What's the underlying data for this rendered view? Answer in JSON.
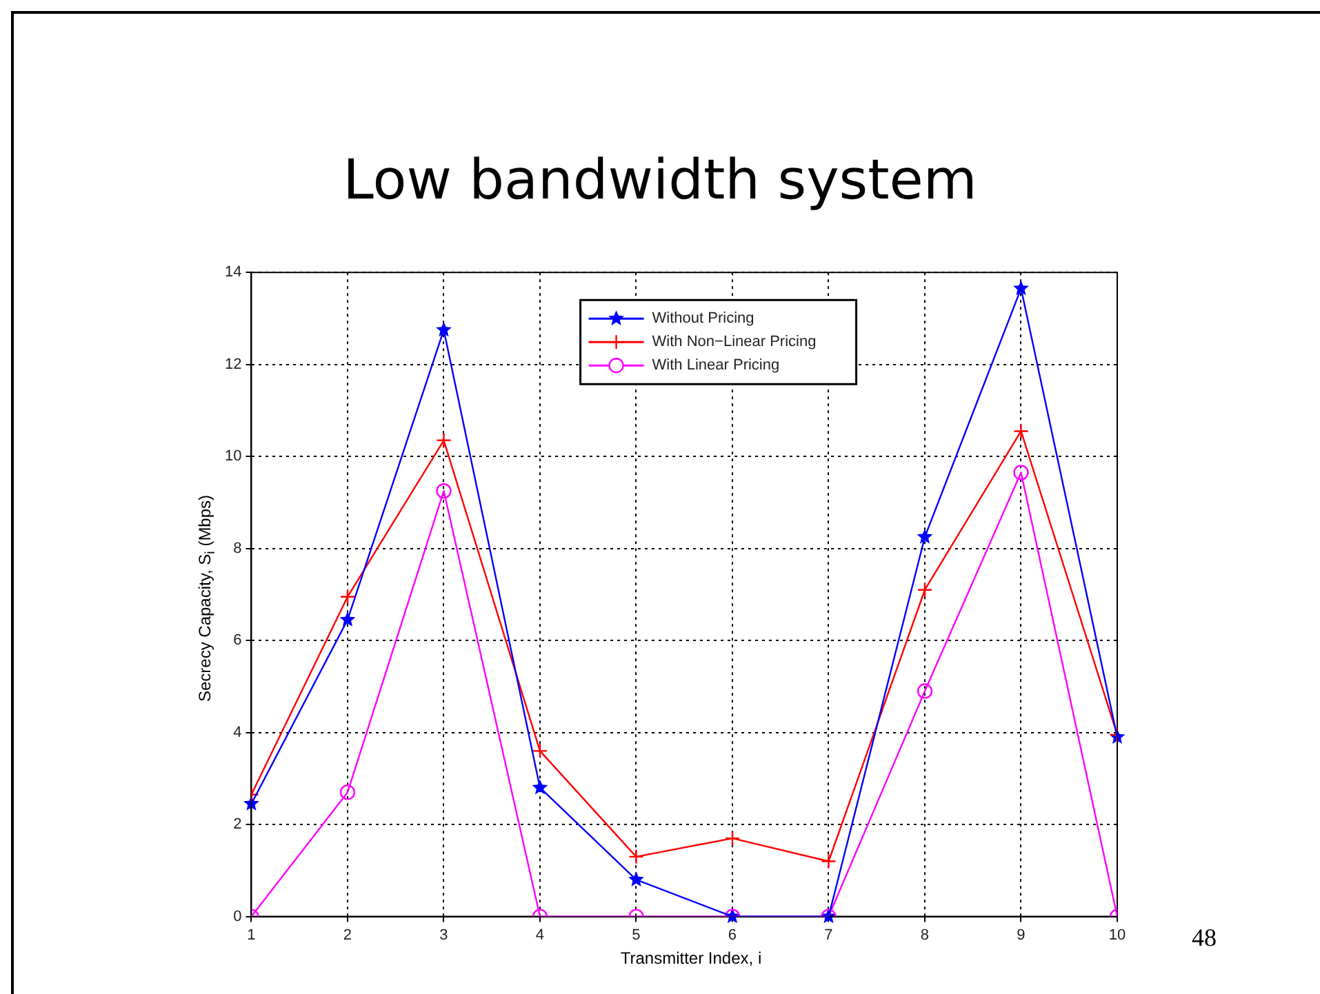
{
  "chart_data": {
    "type": "line",
    "title": "Low bandwidth system",
    "xlabel": "Transmitter Index, i",
    "ylabel": "Secrecy Capacity, S$_{i}$ (Mbps)",
    "x": [
      1,
      2,
      3,
      4,
      5,
      6,
      7,
      8,
      9,
      10
    ],
    "series": [
      {
        "name": "Without Pricing",
        "color": "#0000ff",
        "marker": "star",
        "values": [
          2.45,
          6.45,
          12.75,
          2.8,
          0.8,
          0,
          0,
          8.25,
          13.65,
          3.9
        ]
      },
      {
        "name": "With Non−Linear Pricing",
        "color": "#ff0000",
        "marker": "cross",
        "values": [
          2.65,
          6.95,
          10.35,
          3.6,
          1.3,
          1.7,
          1.2,
          7.1,
          10.55,
          3.95
        ]
      },
      {
        "name": "With Linear Pricing",
        "color": "#ff00ff",
        "marker": "circle",
        "values": [
          0,
          2.7,
          9.25,
          0,
          0,
          0,
          0,
          4.9,
          9.65,
          0
        ]
      }
    ],
    "xlim": [
      1,
      10
    ],
    "xticks": [
      1,
      2,
      3,
      4,
      5,
      6,
      7,
      8,
      9,
      10
    ],
    "ylim": [
      0,
      14
    ],
    "yticks": [
      0,
      2,
      4,
      6,
      8,
      10,
      12,
      14
    ],
    "grid": true,
    "legend": "top",
    "line_style": "solid",
    "annotations": [
      "48"
    ]
  }
}
